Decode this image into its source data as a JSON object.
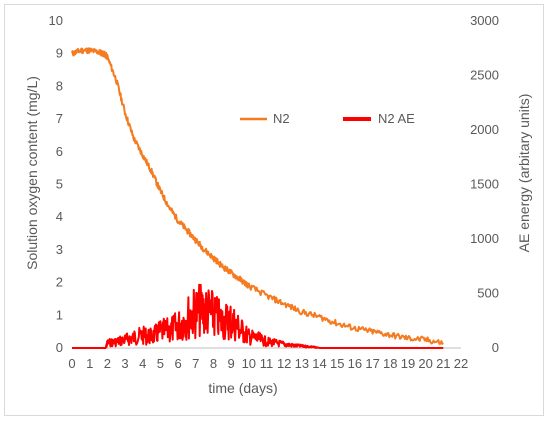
{
  "chart_data": {
    "type": "line",
    "title": "",
    "xlabel": "time (days)",
    "ylabel_left": "Solution oxygen content (mg/L)",
    "ylabel_right": "AE energy (arbitary units)",
    "xlim": [
      0,
      22
    ],
    "ylim_left": [
      0,
      10
    ],
    "ylim_right": [
      0,
      3000
    ],
    "x_ticks": [
      "0",
      "1",
      "2",
      "3",
      "4",
      "5",
      "6",
      "7",
      "8",
      "9",
      "10",
      "11",
      "12",
      "13",
      "14",
      "15",
      "16",
      "17",
      "18",
      "19",
      "20",
      "21",
      "22"
    ],
    "y_left_ticks": [
      "0",
      "1",
      "2",
      "3",
      "4",
      "5",
      "6",
      "7",
      "8",
      "9",
      "10"
    ],
    "y_right_ticks": [
      "0",
      "500",
      "1000",
      "1500",
      "2000",
      "2500",
      "3000"
    ],
    "grid": false,
    "legend_position": "center-right",
    "series": [
      {
        "name": "N2",
        "axis": "left",
        "color": "#f47b20",
        "x": [
          0,
          0.5,
          1,
          1.5,
          1.8,
          2,
          2.5,
          3,
          3.5,
          4,
          4.5,
          5,
          5.5,
          6,
          6.5,
          7,
          7.5,
          8,
          8.5,
          9,
          9.5,
          10,
          11,
          12,
          13,
          14,
          15,
          16,
          17,
          18,
          19,
          20,
          21
        ],
        "y": [
          9.0,
          9.1,
          9.1,
          9.05,
          9.0,
          8.9,
          8.2,
          7.2,
          6.4,
          5.9,
          5.4,
          4.8,
          4.3,
          3.9,
          3.6,
          3.3,
          3.0,
          2.75,
          2.5,
          2.3,
          2.1,
          1.9,
          1.6,
          1.35,
          1.1,
          0.95,
          0.75,
          0.6,
          0.5,
          0.4,
          0.3,
          0.25,
          0.15
        ]
      },
      {
        "name": "N2 AE",
        "axis": "right",
        "color": "#ff0000",
        "x": [
          0,
          1.9,
          2,
          2.5,
          3,
          3.5,
          4,
          4.5,
          5,
          5.5,
          6,
          6.5,
          7,
          7.5,
          8,
          8.5,
          9,
          9.5,
          10,
          10.5,
          11,
          11.5,
          12,
          12.5,
          13,
          13.5,
          13.8,
          14,
          21
        ],
        "y": [
          0,
          0,
          80,
          100,
          130,
          170,
          200,
          180,
          260,
          280,
          350,
          480,
          580,
          610,
          520,
          420,
          440,
          300,
          180,
          150,
          100,
          80,
          60,
          40,
          30,
          20,
          10,
          0,
          0
        ]
      }
    ]
  }
}
